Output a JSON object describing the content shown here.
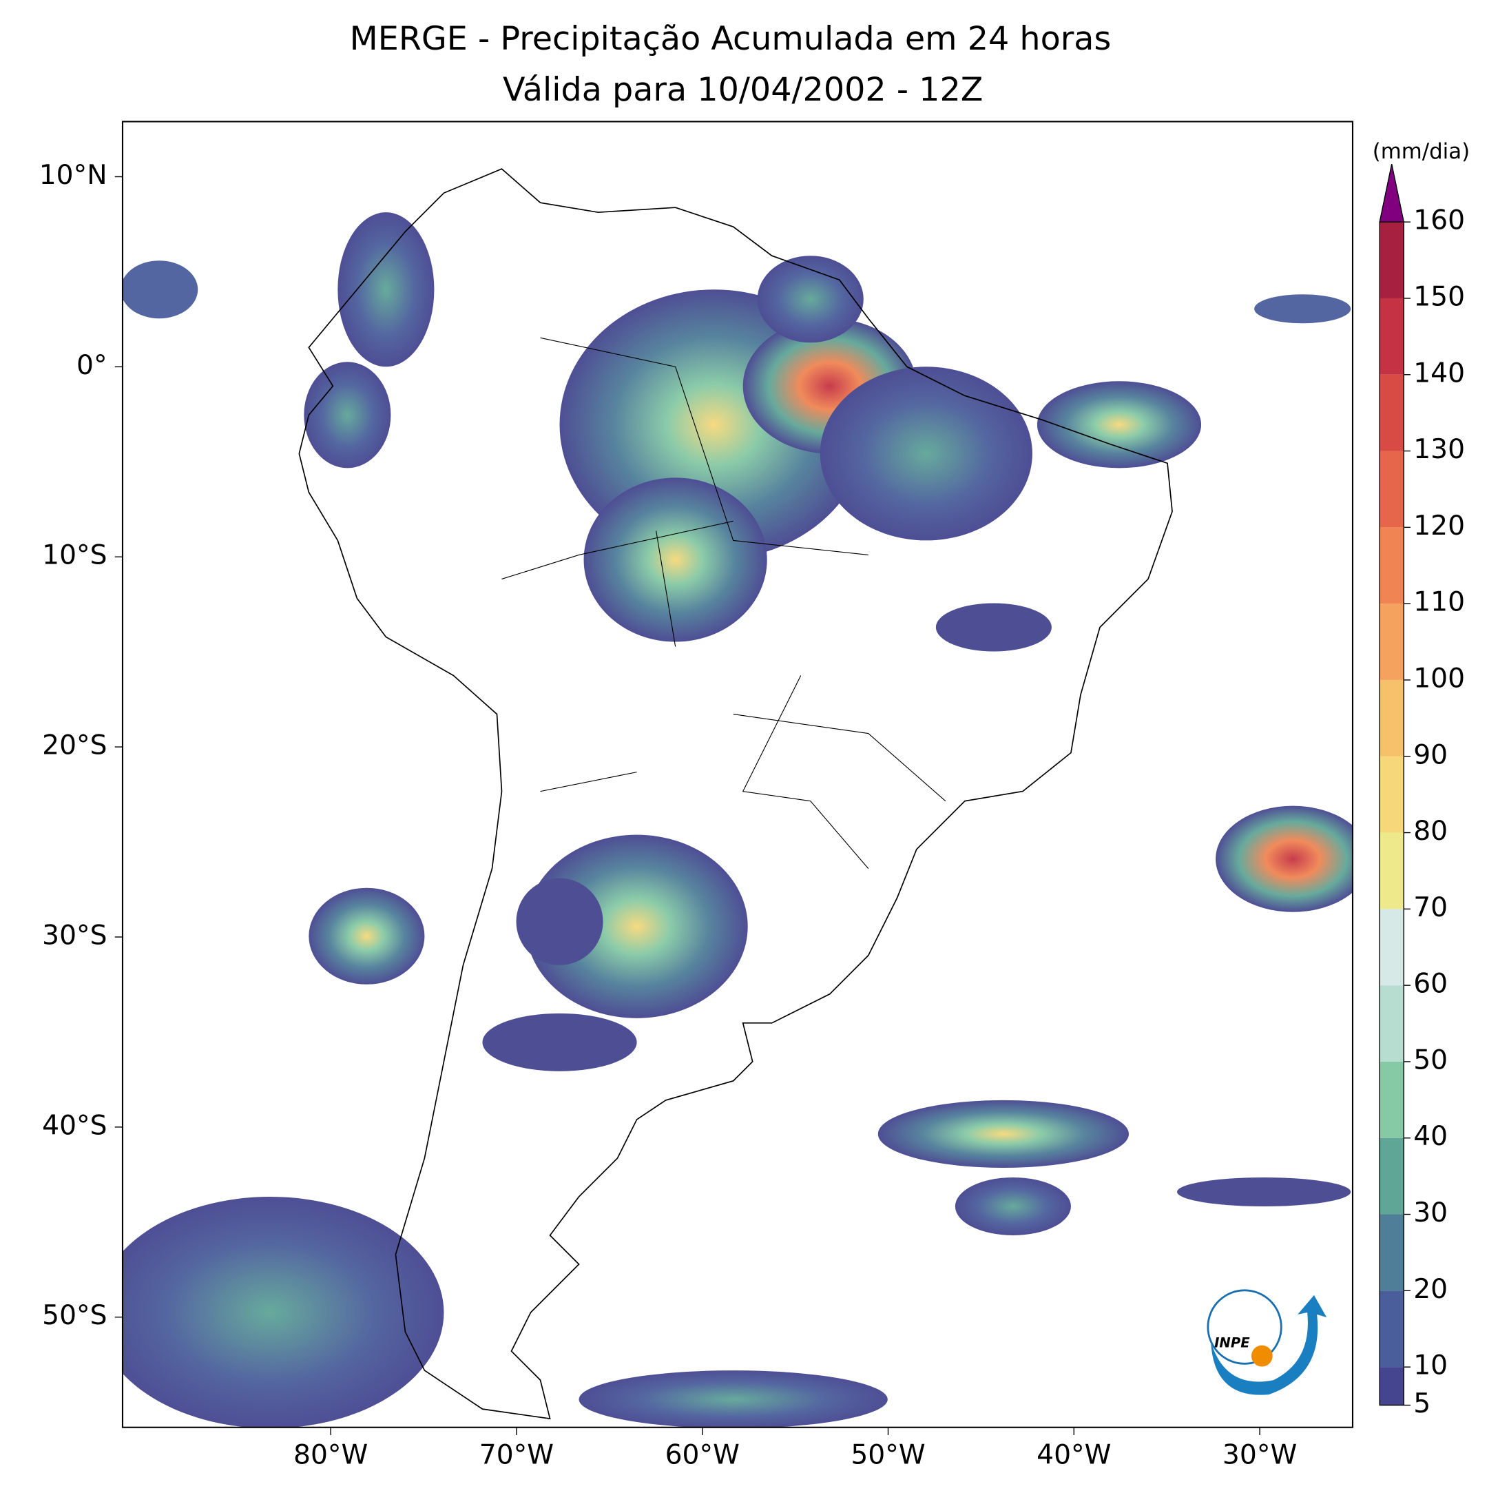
{
  "map": {
    "title": [
      "MERGE - Precipitação Acumulada em 24 horas",
      "Válida para 10/04/2002 - 12Z"
    ],
    "xlim": [
      -91.2,
      -25
    ],
    "ylim": [
      -55.8,
      12.9
    ],
    "xticks": [
      {
        "value": -80,
        "label": "80°W"
      },
      {
        "value": -70,
        "label": "70°W"
      },
      {
        "value": -60,
        "label": "60°W"
      },
      {
        "value": -50,
        "label": "50°W"
      },
      {
        "value": -40,
        "label": "40°W"
      },
      {
        "value": -30,
        "label": "30°W"
      }
    ],
    "yticks": [
      {
        "value": 10,
        "label": "10°N"
      },
      {
        "value": 0,
        "label": "0°"
      },
      {
        "value": -10,
        "label": "10°S"
      },
      {
        "value": -20,
        "label": "20°S"
      },
      {
        "value": -30,
        "label": "30°S"
      },
      {
        "value": -40,
        "label": "40°S"
      },
      {
        "value": -50,
        "label": "50°S"
      }
    ],
    "logo": "INPE"
  },
  "colorbar": {
    "label": "(mm/dia)",
    "ticks": [
      5,
      10,
      20,
      30,
      40,
      50,
      60,
      70,
      80,
      90,
      100,
      110,
      120,
      130,
      140,
      150,
      160
    ],
    "colors": [
      "#45458f",
      "#4b5e9c",
      "#4f7e99",
      "#5fa697",
      "#86c9a5",
      "#b6ddd0",
      "#d6e9e6",
      "#eeea8c",
      "#f6d87a",
      "#f7c06a",
      "#f5a25e",
      "#f08553",
      "#e5664a",
      "#d84a44",
      "#c53243",
      "#a8203f"
    ],
    "extend_color": "#800080"
  }
}
